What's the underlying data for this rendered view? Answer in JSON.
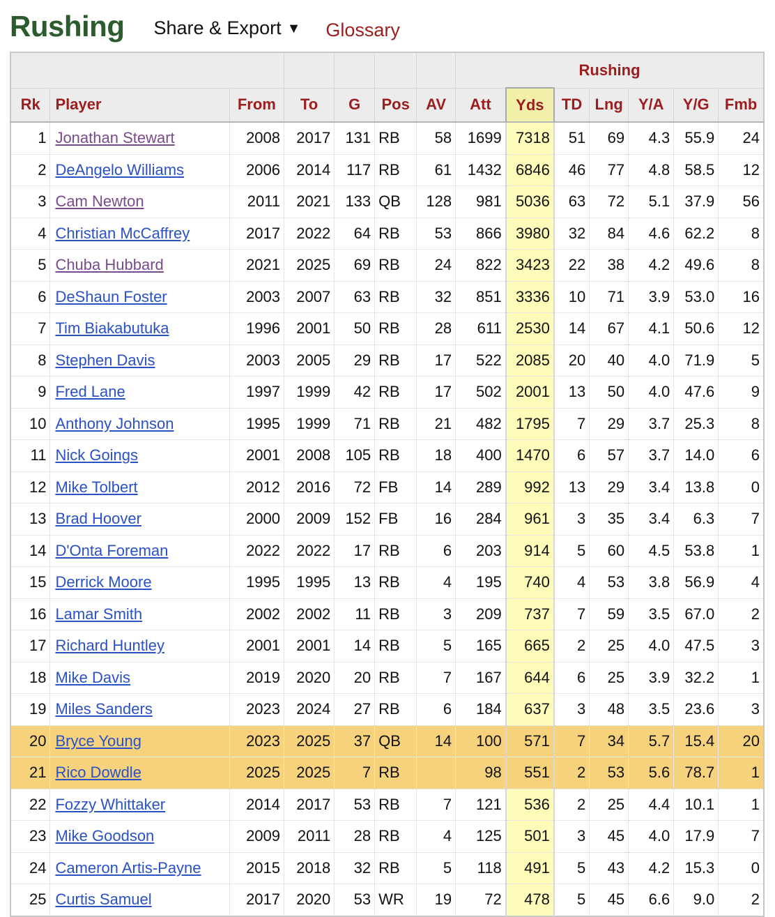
{
  "header": {
    "title": "Rushing",
    "share_export_label": "Share & Export",
    "share_export_caret": "▼",
    "glossary_label": "Glossary"
  },
  "table": {
    "over_header_label": "Rushing",
    "columns": [
      "Rk",
      "Player",
      "From",
      "To",
      "G",
      "Pos",
      "AV",
      "Att",
      "Yds",
      "TD",
      "Lng",
      "Y/A",
      "Y/G",
      "Fmb"
    ],
    "sorted_column": "Yds",
    "colors": {
      "title_green": "#2b5c2d",
      "header_red": "#9b1d1d",
      "link_blue": "#2a51c5",
      "link_visited": "#7a4a8c",
      "sorted_col_bg": "#fefcb8",
      "active_row_bg": "#f6d27c"
    },
    "rows": [
      {
        "rk": "1",
        "player": "Jonathan Stewart",
        "visited": true,
        "active": false,
        "from": "2008",
        "to": "2017",
        "g": "131",
        "pos": "RB",
        "av": "58",
        "att": "1699",
        "yds": "7318",
        "td": "51",
        "lng": "69",
        "ya": "4.3",
        "yg": "55.9",
        "fmb": "24"
      },
      {
        "rk": "2",
        "player": "DeAngelo Williams",
        "visited": false,
        "active": false,
        "from": "2006",
        "to": "2014",
        "g": "117",
        "pos": "RB",
        "av": "61",
        "att": "1432",
        "yds": "6846",
        "td": "46",
        "lng": "77",
        "ya": "4.8",
        "yg": "58.5",
        "fmb": "12"
      },
      {
        "rk": "3",
        "player": "Cam Newton",
        "visited": true,
        "active": false,
        "from": "2011",
        "to": "2021",
        "g": "133",
        "pos": "QB",
        "av": "128",
        "att": "981",
        "yds": "5036",
        "td": "63",
        "lng": "72",
        "ya": "5.1",
        "yg": "37.9",
        "fmb": "56"
      },
      {
        "rk": "4",
        "player": "Christian McCaffrey",
        "visited": false,
        "active": false,
        "from": "2017",
        "to": "2022",
        "g": "64",
        "pos": "RB",
        "av": "53",
        "att": "866",
        "yds": "3980",
        "td": "32",
        "lng": "84",
        "ya": "4.6",
        "yg": "62.2",
        "fmb": "8"
      },
      {
        "rk": "5",
        "player": "Chuba Hubbard",
        "visited": true,
        "active": false,
        "from": "2021",
        "to": "2025",
        "g": "69",
        "pos": "RB",
        "av": "24",
        "att": "822",
        "yds": "3423",
        "td": "22",
        "lng": "38",
        "ya": "4.2",
        "yg": "49.6",
        "fmb": "8"
      },
      {
        "rk": "6",
        "player": "DeShaun Foster",
        "visited": false,
        "active": false,
        "from": "2003",
        "to": "2007",
        "g": "63",
        "pos": "RB",
        "av": "32",
        "att": "851",
        "yds": "3336",
        "td": "10",
        "lng": "71",
        "ya": "3.9",
        "yg": "53.0",
        "fmb": "16"
      },
      {
        "rk": "7",
        "player": "Tim Biakabutuka",
        "visited": false,
        "active": false,
        "from": "1996",
        "to": "2001",
        "g": "50",
        "pos": "RB",
        "av": "28",
        "att": "611",
        "yds": "2530",
        "td": "14",
        "lng": "67",
        "ya": "4.1",
        "yg": "50.6",
        "fmb": "12"
      },
      {
        "rk": "8",
        "player": "Stephen Davis",
        "visited": false,
        "active": false,
        "from": "2003",
        "to": "2005",
        "g": "29",
        "pos": "RB",
        "av": "17",
        "att": "522",
        "yds": "2085",
        "td": "20",
        "lng": "40",
        "ya": "4.0",
        "yg": "71.9",
        "fmb": "5"
      },
      {
        "rk": "9",
        "player": "Fred Lane",
        "visited": false,
        "active": false,
        "from": "1997",
        "to": "1999",
        "g": "42",
        "pos": "RB",
        "av": "17",
        "att": "502",
        "yds": "2001",
        "td": "13",
        "lng": "50",
        "ya": "4.0",
        "yg": "47.6",
        "fmb": "9"
      },
      {
        "rk": "10",
        "player": "Anthony Johnson",
        "visited": false,
        "active": false,
        "from": "1995",
        "to": "1999",
        "g": "71",
        "pos": "RB",
        "av": "21",
        "att": "482",
        "yds": "1795",
        "td": "7",
        "lng": "29",
        "ya": "3.7",
        "yg": "25.3",
        "fmb": "8"
      },
      {
        "rk": "11",
        "player": "Nick Goings",
        "visited": false,
        "active": false,
        "from": "2001",
        "to": "2008",
        "g": "105",
        "pos": "RB",
        "av": "18",
        "att": "400",
        "yds": "1470",
        "td": "6",
        "lng": "57",
        "ya": "3.7",
        "yg": "14.0",
        "fmb": "6"
      },
      {
        "rk": "12",
        "player": "Mike Tolbert",
        "visited": false,
        "active": false,
        "from": "2012",
        "to": "2016",
        "g": "72",
        "pos": "FB",
        "av": "14",
        "att": "289",
        "yds": "992",
        "td": "13",
        "lng": "29",
        "ya": "3.4",
        "yg": "13.8",
        "fmb": "0"
      },
      {
        "rk": "13",
        "player": "Brad Hoover",
        "visited": false,
        "active": false,
        "from": "2000",
        "to": "2009",
        "g": "152",
        "pos": "FB",
        "av": "16",
        "att": "284",
        "yds": "961",
        "td": "3",
        "lng": "35",
        "ya": "3.4",
        "yg": "6.3",
        "fmb": "7"
      },
      {
        "rk": "14",
        "player": "D'Onta Foreman",
        "visited": false,
        "active": false,
        "from": "2022",
        "to": "2022",
        "g": "17",
        "pos": "RB",
        "av": "6",
        "att": "203",
        "yds": "914",
        "td": "5",
        "lng": "60",
        "ya": "4.5",
        "yg": "53.8",
        "fmb": "1"
      },
      {
        "rk": "15",
        "player": "Derrick Moore",
        "visited": false,
        "active": false,
        "from": "1995",
        "to": "1995",
        "g": "13",
        "pos": "RB",
        "av": "4",
        "att": "195",
        "yds": "740",
        "td": "4",
        "lng": "53",
        "ya": "3.8",
        "yg": "56.9",
        "fmb": "4"
      },
      {
        "rk": "16",
        "player": "Lamar Smith",
        "visited": false,
        "active": false,
        "from": "2002",
        "to": "2002",
        "g": "11",
        "pos": "RB",
        "av": "3",
        "att": "209",
        "yds": "737",
        "td": "7",
        "lng": "59",
        "ya": "3.5",
        "yg": "67.0",
        "fmb": "2"
      },
      {
        "rk": "17",
        "player": "Richard Huntley",
        "visited": false,
        "active": false,
        "from": "2001",
        "to": "2001",
        "g": "14",
        "pos": "RB",
        "av": "5",
        "att": "165",
        "yds": "665",
        "td": "2",
        "lng": "25",
        "ya": "4.0",
        "yg": "47.5",
        "fmb": "3"
      },
      {
        "rk": "18",
        "player": "Mike Davis",
        "visited": false,
        "active": false,
        "from": "2019",
        "to": "2020",
        "g": "20",
        "pos": "RB",
        "av": "7",
        "att": "167",
        "yds": "644",
        "td": "6",
        "lng": "25",
        "ya": "3.9",
        "yg": "32.2",
        "fmb": "1"
      },
      {
        "rk": "19",
        "player": "Miles Sanders",
        "visited": false,
        "active": false,
        "from": "2023",
        "to": "2024",
        "g": "27",
        "pos": "RB",
        "av": "6",
        "att": "184",
        "yds": "637",
        "td": "3",
        "lng": "48",
        "ya": "3.5",
        "yg": "23.6",
        "fmb": "3"
      },
      {
        "rk": "20",
        "player": "Bryce Young",
        "visited": false,
        "active": true,
        "from": "2023",
        "to": "2025",
        "g": "37",
        "pos": "QB",
        "av": "14",
        "att": "100",
        "yds": "571",
        "td": "7",
        "lng": "34",
        "ya": "5.7",
        "yg": "15.4",
        "fmb": "20"
      },
      {
        "rk": "21",
        "player": "Rico Dowdle",
        "visited": false,
        "active": true,
        "from": "2025",
        "to": "2025",
        "g": "7",
        "pos": "RB",
        "av": "",
        "att": "98",
        "yds": "551",
        "td": "2",
        "lng": "53",
        "ya": "5.6",
        "yg": "78.7",
        "fmb": "1"
      },
      {
        "rk": "22",
        "player": "Fozzy Whittaker",
        "visited": false,
        "active": false,
        "from": "2014",
        "to": "2017",
        "g": "53",
        "pos": "RB",
        "av": "7",
        "att": "121",
        "yds": "536",
        "td": "2",
        "lng": "25",
        "ya": "4.4",
        "yg": "10.1",
        "fmb": "1"
      },
      {
        "rk": "23",
        "player": "Mike Goodson",
        "visited": false,
        "active": false,
        "from": "2009",
        "to": "2011",
        "g": "28",
        "pos": "RB",
        "av": "4",
        "att": "125",
        "yds": "501",
        "td": "3",
        "lng": "45",
        "ya": "4.0",
        "yg": "17.9",
        "fmb": "7"
      },
      {
        "rk": "24",
        "player": "Cameron Artis-Payne",
        "visited": false,
        "active": false,
        "from": "2015",
        "to": "2018",
        "g": "32",
        "pos": "RB",
        "av": "5",
        "att": "118",
        "yds": "491",
        "td": "5",
        "lng": "43",
        "ya": "4.2",
        "yg": "15.3",
        "fmb": "0"
      },
      {
        "rk": "25",
        "player": "Curtis Samuel",
        "visited": false,
        "active": false,
        "from": "2017",
        "to": "2020",
        "g": "53",
        "pos": "WR",
        "av": "19",
        "att": "72",
        "yds": "478",
        "td": "5",
        "lng": "45",
        "ya": "6.6",
        "yg": "9.0",
        "fmb": "2"
      }
    ]
  }
}
